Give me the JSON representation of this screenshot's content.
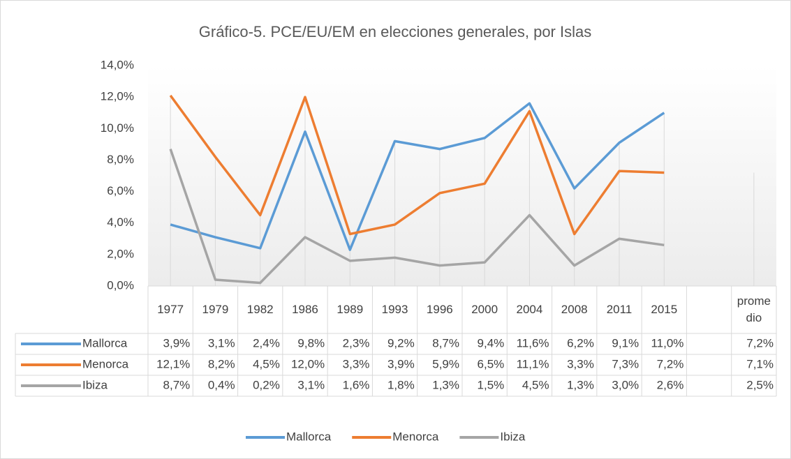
{
  "chart_data": {
    "type": "line",
    "title": "Gráfico-5. PCE/EU/EM en elecciones generales, por Islas",
    "categories": [
      "1977",
      "1979",
      "1982",
      "1986",
      "1989",
      "1993",
      "1996",
      "2000",
      "2004",
      "2008",
      "2011",
      "2015",
      null,
      "promedio"
    ],
    "series": [
      {
        "name": "Mallorca",
        "color": "#5b9bd5",
        "values": [
          3.9,
          3.1,
          2.4,
          9.8,
          2.3,
          9.2,
          8.7,
          9.4,
          11.6,
          6.2,
          9.1,
          11.0,
          null,
          7.2
        ],
        "value_labels": [
          "3,9%",
          "3,1%",
          "2,4%",
          "9,8%",
          "2,3%",
          "9,2%",
          "8,7%",
          "9,4%",
          "11,6%",
          "6,2%",
          "9,1%",
          "11,0%",
          null,
          "7,2%"
        ]
      },
      {
        "name": "Menorca",
        "color": "#ed7d31",
        "values": [
          12.1,
          8.2,
          4.5,
          12.0,
          3.3,
          3.9,
          5.9,
          6.5,
          11.1,
          3.3,
          7.3,
          7.2,
          null,
          7.1
        ],
        "value_labels": [
          "12,1%",
          "8,2%",
          "4,5%",
          "12,0%",
          "3,3%",
          "3,9%",
          "5,9%",
          "6,5%",
          "11,1%",
          "3,3%",
          "7,3%",
          "7,2%",
          null,
          "7,1%"
        ]
      },
      {
        "name": "Ibiza",
        "color": "#a5a5a5",
        "values": [
          8.7,
          0.4,
          0.2,
          3.1,
          1.6,
          1.8,
          1.3,
          1.5,
          4.5,
          1.3,
          3.0,
          2.6,
          null,
          2.5
        ],
        "value_labels": [
          "8,7%",
          "0,4%",
          "0,2%",
          "3,1%",
          "1,6%",
          "1,8%",
          "1,3%",
          "1,5%",
          "4,5%",
          "1,3%",
          "3,0%",
          "2,6%",
          null,
          "2,5%"
        ]
      }
    ],
    "ylim": [
      0,
      14
    ],
    "yticks": [
      {
        "value": 0,
        "label": "0,0%"
      },
      {
        "value": 2,
        "label": "2,0%"
      },
      {
        "value": 4,
        "label": "4,0%"
      },
      {
        "value": 6,
        "label": "6,0%"
      },
      {
        "value": 8,
        "label": "8,0%"
      },
      {
        "value": 10,
        "label": "10,0%"
      },
      {
        "value": 12,
        "label": "12,0%"
      },
      {
        "value": 14,
        "label": "14,0%"
      }
    ],
    "legend": "bottom"
  }
}
